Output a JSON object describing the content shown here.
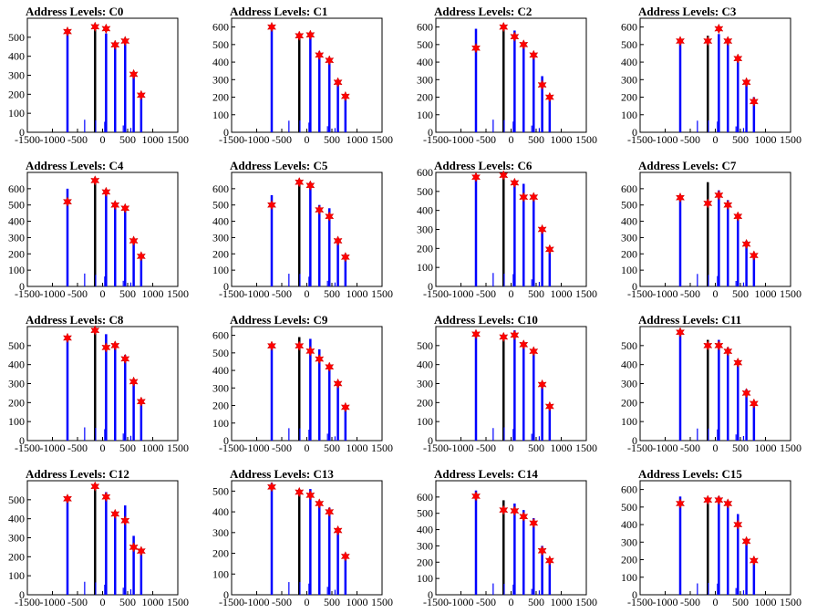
{
  "xaxis": {
    "range": [
      -1500,
      1500
    ],
    "ticks": [
      -1500,
      -1000,
      -500,
      0,
      500,
      1000,
      1500
    ]
  },
  "chart_data": [
    {
      "type": "bar",
      "title": "Address Levels: C0",
      "ylim": [
        0,
        600
      ],
      "yticks": [
        0,
        100,
        200,
        300,
        400,
        500
      ],
      "bars": [
        [
          -700,
          530
        ],
        [
          -150,
          550
        ],
        [
          70,
          520
        ],
        [
          250,
          460
        ],
        [
          450,
          470
        ],
        [
          620,
          300
        ],
        [
          770,
          190
        ]
      ],
      "markers": [
        [
          -700,
          530
        ],
        [
          -150,
          555
        ],
        [
          70,
          545
        ],
        [
          250,
          460
        ],
        [
          450,
          480
        ],
        [
          620,
          305
        ],
        [
          770,
          195
        ]
      ]
    },
    {
      "type": "bar",
      "title": "Address Levels: C1",
      "ylim": [
        0,
        650
      ],
      "yticks": [
        0,
        100,
        200,
        300,
        400,
        500,
        600
      ],
      "bars": [
        [
          -700,
          600
        ],
        [
          -150,
          550
        ],
        [
          70,
          560
        ],
        [
          250,
          460
        ],
        [
          450,
          410
        ],
        [
          620,
          290
        ],
        [
          770,
          200
        ]
      ],
      "markers": [
        [
          -700,
          600
        ],
        [
          -150,
          550
        ],
        [
          70,
          555
        ],
        [
          250,
          440
        ],
        [
          450,
          410
        ],
        [
          620,
          285
        ],
        [
          770,
          205
        ]
      ]
    },
    {
      "type": "bar",
      "title": "Address Levels: C2",
      "ylim": [
        0,
        650
      ],
      "yticks": [
        0,
        100,
        200,
        300,
        400,
        500,
        600
      ],
      "bars": [
        [
          -700,
          590
        ],
        [
          -150,
          600
        ],
        [
          70,
          580
        ],
        [
          250,
          510
        ],
        [
          450,
          450
        ],
        [
          620,
          320
        ],
        [
          770,
          200
        ]
      ],
      "markers": [
        [
          -700,
          480
        ],
        [
          -150,
          600
        ],
        [
          70,
          545
        ],
        [
          250,
          500
        ],
        [
          450,
          440
        ],
        [
          620,
          270
        ],
        [
          770,
          200
        ]
      ]
    },
    {
      "type": "bar",
      "title": "Address Levels: C3",
      "ylim": [
        0,
        650
      ],
      "yticks": [
        0,
        100,
        200,
        300,
        400,
        500,
        600
      ],
      "bars": [
        [
          -700,
          530
        ],
        [
          -150,
          550
        ],
        [
          70,
          560
        ],
        [
          250,
          510
        ],
        [
          450,
          410
        ],
        [
          620,
          280
        ],
        [
          770,
          200
        ]
      ],
      "markers": [
        [
          -700,
          520
        ],
        [
          -150,
          520
        ],
        [
          70,
          590
        ],
        [
          250,
          520
        ],
        [
          450,
          420
        ],
        [
          620,
          285
        ],
        [
          770,
          175
        ]
      ]
    },
    {
      "type": "bar",
      "title": "Address Levels: C4",
      "ylim": [
        0,
        700
      ],
      "yticks": [
        0,
        100,
        200,
        300,
        400,
        500,
        600
      ],
      "bars": [
        [
          -700,
          600
        ],
        [
          -150,
          660
        ],
        [
          70,
          590
        ],
        [
          250,
          510
        ],
        [
          450,
          490
        ],
        [
          620,
          290
        ],
        [
          770,
          200
        ]
      ],
      "markers": [
        [
          -700,
          520
        ],
        [
          -150,
          650
        ],
        [
          70,
          580
        ],
        [
          250,
          500
        ],
        [
          450,
          480
        ],
        [
          620,
          280
        ],
        [
          770,
          185
        ]
      ]
    },
    {
      "type": "bar",
      "title": "Address Levels: C5",
      "ylim": [
        0,
        700
      ],
      "yticks": [
        0,
        100,
        200,
        300,
        400,
        500,
        600
      ],
      "bars": [
        [
          -700,
          560
        ],
        [
          -150,
          650
        ],
        [
          70,
          640
        ],
        [
          250,
          500
        ],
        [
          450,
          480
        ],
        [
          620,
          290
        ],
        [
          770,
          200
        ]
      ],
      "markers": [
        [
          -700,
          500
        ],
        [
          -150,
          640
        ],
        [
          70,
          620
        ],
        [
          250,
          470
        ],
        [
          450,
          430
        ],
        [
          620,
          280
        ],
        [
          770,
          180
        ]
      ]
    },
    {
      "type": "bar",
      "title": "Address Levels: C6",
      "ylim": [
        0,
        600
      ],
      "yticks": [
        0,
        100,
        200,
        300,
        400,
        500,
        600
      ],
      "bars": [
        [
          -700,
          590
        ],
        [
          -150,
          590
        ],
        [
          70,
          560
        ],
        [
          250,
          540
        ],
        [
          450,
          480
        ],
        [
          620,
          310
        ],
        [
          770,
          200
        ]
      ],
      "markers": [
        [
          -700,
          575
        ],
        [
          -150,
          585
        ],
        [
          70,
          545
        ],
        [
          250,
          470
        ],
        [
          450,
          470
        ],
        [
          620,
          300
        ],
        [
          770,
          195
        ]
      ]
    },
    {
      "type": "bar",
      "title": "Address Levels: C7",
      "ylim": [
        0,
        700
      ],
      "yticks": [
        0,
        100,
        200,
        300,
        400,
        500,
        600
      ],
      "bars": [
        [
          -700,
          560
        ],
        [
          -150,
          640
        ],
        [
          70,
          590
        ],
        [
          250,
          530
        ],
        [
          450,
          440
        ],
        [
          620,
          280
        ],
        [
          770,
          200
        ]
      ],
      "markers": [
        [
          -700,
          545
        ],
        [
          -150,
          510
        ],
        [
          70,
          560
        ],
        [
          250,
          500
        ],
        [
          450,
          430
        ],
        [
          620,
          260
        ],
        [
          770,
          190
        ]
      ]
    },
    {
      "type": "bar",
      "title": "Address Levels: C8",
      "ylim": [
        0,
        600
      ],
      "yticks": [
        0,
        100,
        200,
        300,
        400,
        500
      ],
      "bars": [
        [
          -700,
          530
        ],
        [
          -150,
          580
        ],
        [
          70,
          560
        ],
        [
          250,
          500
        ],
        [
          450,
          450
        ],
        [
          620,
          310
        ],
        [
          770,
          210
        ]
      ],
      "markers": [
        [
          -700,
          540
        ],
        [
          -150,
          580
        ],
        [
          70,
          490
        ],
        [
          250,
          500
        ],
        [
          450,
          430
        ],
        [
          620,
          310
        ],
        [
          770,
          205
        ]
      ]
    },
    {
      "type": "bar",
      "title": "Address Levels: C9",
      "ylim": [
        0,
        650
      ],
      "yticks": [
        0,
        100,
        200,
        300,
        400,
        500,
        600
      ],
      "bars": [
        [
          -700,
          550
        ],
        [
          -150,
          590
        ],
        [
          70,
          580
        ],
        [
          250,
          520
        ],
        [
          450,
          420
        ],
        [
          620,
          330
        ],
        [
          770,
          200
        ]
      ],
      "markers": [
        [
          -700,
          540
        ],
        [
          -150,
          540
        ],
        [
          70,
          510
        ],
        [
          250,
          465
        ],
        [
          450,
          420
        ],
        [
          620,
          325
        ],
        [
          770,
          190
        ]
      ]
    },
    {
      "type": "bar",
      "title": "Address Levels: C10",
      "ylim": [
        0,
        600
      ],
      "yticks": [
        0,
        100,
        200,
        300,
        400,
        500
      ],
      "bars": [
        [
          -700,
          560
        ],
        [
          -150,
          550
        ],
        [
          70,
          580
        ],
        [
          250,
          510
        ],
        [
          450,
          470
        ],
        [
          620,
          300
        ],
        [
          770,
          190
        ]
      ],
      "markers": [
        [
          -700,
          560
        ],
        [
          -150,
          545
        ],
        [
          70,
          555
        ],
        [
          250,
          505
        ],
        [
          450,
          470
        ],
        [
          620,
          295
        ],
        [
          770,
          180
        ]
      ]
    },
    {
      "type": "bar",
      "title": "Address Levels: C11",
      "ylim": [
        0,
        600
      ],
      "yticks": [
        0,
        100,
        200,
        300,
        400,
        500
      ],
      "bars": [
        [
          -700,
          580
        ],
        [
          -150,
          530
        ],
        [
          70,
          530
        ],
        [
          250,
          490
        ],
        [
          450,
          420
        ],
        [
          620,
          270
        ],
        [
          770,
          200
        ]
      ],
      "markers": [
        [
          -700,
          570
        ],
        [
          -150,
          500
        ],
        [
          70,
          500
        ],
        [
          250,
          470
        ],
        [
          450,
          410
        ],
        [
          620,
          250
        ],
        [
          770,
          195
        ]
      ]
    },
    {
      "type": "bar",
      "title": "Address Levels: C12",
      "ylim": [
        0,
        600
      ],
      "yticks": [
        0,
        100,
        200,
        300,
        400,
        500
      ],
      "bars": [
        [
          -700,
          520
        ],
        [
          -150,
          570
        ],
        [
          70,
          540
        ],
        [
          250,
          440
        ],
        [
          450,
          470
        ],
        [
          620,
          310
        ],
        [
          770,
          240
        ]
      ],
      "markers": [
        [
          -700,
          505
        ],
        [
          -150,
          570
        ],
        [
          70,
          515
        ],
        [
          250,
          425
        ],
        [
          450,
          390
        ],
        [
          620,
          250
        ],
        [
          770,
          230
        ]
      ]
    },
    {
      "type": "bar",
      "title": "Address Levels: C13",
      "ylim": [
        0,
        550
      ],
      "yticks": [
        0,
        100,
        200,
        300,
        400,
        500
      ],
      "bars": [
        [
          -700,
          540
        ],
        [
          -150,
          510
        ],
        [
          70,
          510
        ],
        [
          250,
          450
        ],
        [
          450,
          420
        ],
        [
          620,
          320
        ],
        [
          770,
          200
        ]
      ],
      "markers": [
        [
          -700,
          520
        ],
        [
          -150,
          495
        ],
        [
          70,
          480
        ],
        [
          250,
          440
        ],
        [
          450,
          400
        ],
        [
          620,
          310
        ],
        [
          770,
          185
        ]
      ]
    },
    {
      "type": "bar",
      "title": "Address Levels: C14",
      "ylim": [
        0,
        700
      ],
      "yticks": [
        0,
        100,
        200,
        300,
        400,
        500,
        600
      ],
      "bars": [
        [
          -700,
          640
        ],
        [
          -150,
          580
        ],
        [
          70,
          560
        ],
        [
          250,
          520
        ],
        [
          450,
          470
        ],
        [
          620,
          300
        ],
        [
          770,
          220
        ]
      ],
      "markers": [
        [
          -700,
          605
        ],
        [
          -150,
          520
        ],
        [
          70,
          515
        ],
        [
          250,
          480
        ],
        [
          450,
          440
        ],
        [
          620,
          270
        ],
        [
          770,
          210
        ]
      ]
    },
    {
      "type": "bar",
      "title": "Address Levels: C15",
      "ylim": [
        0,
        650
      ],
      "yticks": [
        0,
        100,
        200,
        300,
        400,
        500,
        600
      ],
      "bars": [
        [
          -700,
          560
        ],
        [
          -150,
          540
        ],
        [
          70,
          560
        ],
        [
          250,
          530
        ],
        [
          450,
          460
        ],
        [
          620,
          320
        ],
        [
          770,
          210
        ]
      ],
      "markers": [
        [
          -700,
          520
        ],
        [
          -150,
          540
        ],
        [
          70,
          540
        ],
        [
          250,
          520
        ],
        [
          450,
          400
        ],
        [
          620,
          305
        ],
        [
          770,
          195
        ]
      ]
    }
  ]
}
